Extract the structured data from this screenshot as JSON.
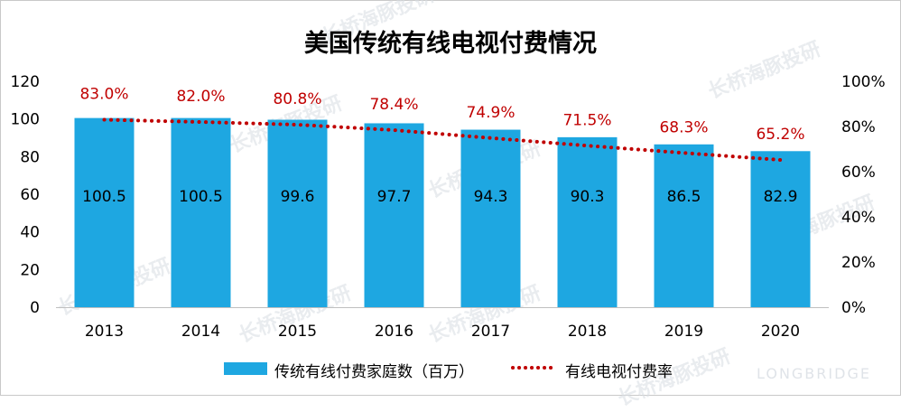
{
  "watermark_cn": "长桥海豚投研",
  "watermark_en": "LONGBRIDGE",
  "colors": {
    "bar": "#1ea7e1",
    "line": "#c00000",
    "bar_label": "#000000",
    "axis_text": "#000000"
  },
  "chart_data": {
    "type": "bar",
    "title": "美国传统有线电视付费情况",
    "categories": [
      "2013",
      "2014",
      "2015",
      "2016",
      "2017",
      "2018",
      "2019",
      "2020"
    ],
    "series": [
      {
        "name": "传统有线付费家庭数（百万）",
        "type": "bar",
        "axis": "left",
        "values": [
          100.5,
          100.5,
          99.6,
          97.7,
          94.3,
          90.3,
          86.5,
          82.9
        ],
        "labels": [
          "100.5",
          "100.5",
          "99.6",
          "97.7",
          "94.3",
          "90.3",
          "86.5",
          "82.9"
        ]
      },
      {
        "name": "有线电视付费率",
        "type": "line",
        "style": "dotted",
        "axis": "right",
        "values": [
          83.0,
          82.0,
          80.8,
          78.4,
          74.9,
          71.5,
          68.3,
          65.2
        ],
        "labels": [
          "83.0%",
          "82.0%",
          "80.8%",
          "78.4%",
          "74.9%",
          "71.5%",
          "68.3%",
          "65.2%"
        ]
      }
    ],
    "y_left": {
      "ylim": [
        0,
        120
      ],
      "ticks": [
        "0",
        "20",
        "40",
        "60",
        "80",
        "100",
        "120"
      ]
    },
    "y_right": {
      "ylim": [
        0,
        100
      ],
      "ticks": [
        "0%",
        "20%",
        "40%",
        "60%",
        "80%",
        "100%"
      ]
    },
    "grid": false,
    "legend_position": "bottom"
  }
}
